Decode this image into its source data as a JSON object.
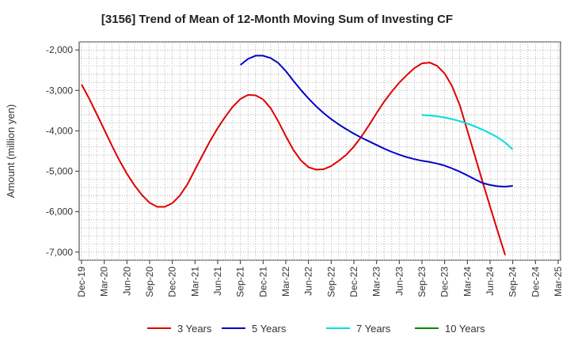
{
  "chart_data": {
    "type": "line",
    "title": "[3156]  Trend of Mean of 12-Month Moving Sum of Investing CF",
    "xlabel": "",
    "ylabel": "Amount (million yen)",
    "ylim": [
      -7200,
      -1800
    ],
    "yticks": [
      -2000,
      -3000,
      -4000,
      -5000,
      -6000,
      -7000
    ],
    "ytick_labels": [
      "-2,000",
      "-3,000",
      "-4,000",
      "-5,000",
      "-6,000",
      "-7,000"
    ],
    "x_tick_labels": [
      "Dec-19",
      "Mar-20",
      "Jun-20",
      "Sep-20",
      "Dec-20",
      "Mar-21",
      "Jun-21",
      "Sep-21",
      "Dec-21",
      "Mar-22",
      "Jun-22",
      "Sep-22",
      "Dec-22",
      "Mar-23",
      "Jun-23",
      "Sep-23",
      "Dec-23",
      "Mar-24",
      "Jun-24",
      "Sep-24",
      "Dec-24",
      "Mar-25"
    ],
    "grid": true,
    "legend_position": "bottom",
    "series": [
      {
        "name": "3 Years",
        "color": "#dd0000",
        "start_index": 0,
        "values": [
          -2850,
          -3200,
          -3580,
          -3970,
          -4360,
          -4730,
          -5060,
          -5350,
          -5590,
          -5780,
          -5880,
          -5880,
          -5790,
          -5600,
          -5320,
          -4960,
          -4600,
          -4250,
          -3930,
          -3650,
          -3400,
          -3210,
          -3110,
          -3120,
          -3220,
          -3440,
          -3760,
          -4130,
          -4470,
          -4730,
          -4900,
          -4960,
          -4950,
          -4870,
          -4740,
          -4590,
          -4390,
          -4140,
          -3860,
          -3560,
          -3280,
          -3030,
          -2810,
          -2620,
          -2450,
          -2330,
          -2310,
          -2390,
          -2580,
          -2900,
          -3370,
          -3990,
          -4620,
          -5250,
          -5870,
          -6480,
          -7070
        ]
      },
      {
        "name": "5 Years",
        "color": "#0000cc",
        "start_index": 21,
        "values": [
          -2370,
          -2220,
          -2140,
          -2140,
          -2200,
          -2320,
          -2520,
          -2760,
          -2990,
          -3200,
          -3390,
          -3560,
          -3710,
          -3840,
          -3960,
          -4070,
          -4170,
          -4260,
          -4350,
          -4440,
          -4520,
          -4590,
          -4650,
          -4700,
          -4740,
          -4770,
          -4810,
          -4860,
          -4930,
          -5010,
          -5100,
          -5200,
          -5290,
          -5340,
          -5370,
          -5380,
          -5360
        ]
      },
      {
        "name": "7 Years",
        "color": "#00dddd",
        "start_index": 45,
        "values": [
          -3610,
          -3620,
          -3640,
          -3670,
          -3710,
          -3760,
          -3820,
          -3890,
          -3970,
          -4060,
          -4160,
          -4290,
          -4460
        ]
      },
      {
        "name": "10 Years",
        "color": "#008800",
        "start_index": 0,
        "values": []
      }
    ]
  }
}
